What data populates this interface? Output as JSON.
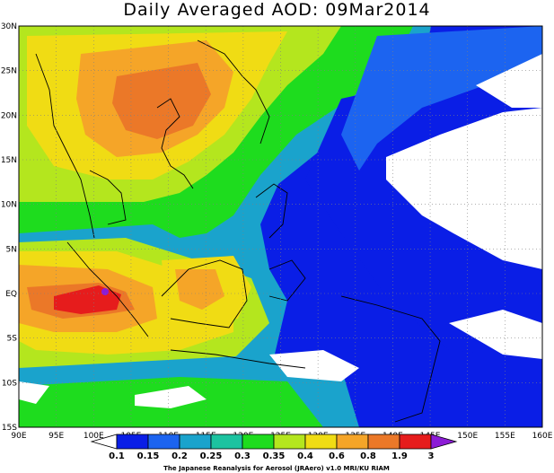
{
  "title": "Daily Averaged AOD: 09Mar2014",
  "map": {
    "lon_labels": [
      "90E",
      "95E",
      "100E",
      "105E",
      "110E",
      "115E",
      "120E",
      "125E",
      "130E",
      "135E",
      "140E",
      "145E",
      "150E",
      "155E",
      "160E"
    ],
    "lat_labels": [
      "30N",
      "25N",
      "20N",
      "15N",
      "10N",
      "5N",
      "EQ",
      "5S",
      "10S",
      "15S"
    ],
    "region": {
      "lon_min": 90,
      "lon_max": 160,
      "lat_min": -15,
      "lat_max": 30
    }
  },
  "colorbar": {
    "labels": [
      "0.1",
      "0.15",
      "0.2",
      "0.25",
      "0.3",
      "0.35",
      "0.4",
      "0.6",
      "0.8",
      "1.9",
      "3"
    ],
    "colors": [
      "#0a1ee6",
      "#1c64f0",
      "#1aa3cc",
      "#1cc3a0",
      "#1edc1e",
      "#b4e61e",
      "#f0dc14",
      "#f5a528",
      "#eb7828",
      "#e61c1c"
    ],
    "credit": "The Japanese Reanalysis for Aerosol (JRAero) v1.0 MRI/KU RIAM"
  }
}
